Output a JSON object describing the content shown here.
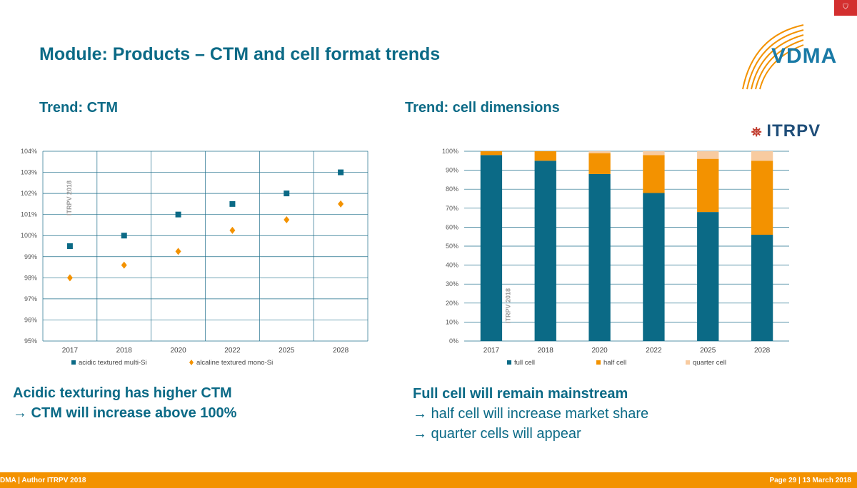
{
  "slide": {
    "title": "Module: Products – CTM and cell format trends",
    "left_subtitle": "Trend: CTM",
    "right_subtitle": "Trend: cell dimensions",
    "brand": "VDMA",
    "itrpv_logo": "ITRPV",
    "itrpv_mark": "⛯",
    "corner_icon": "bookmark-icon",
    "left_note": [
      "Acidic texturing has higher CTM",
      "→ CTM will increase above 100%"
    ],
    "right_note": [
      "Full cell will remain mainstream",
      "→ half cell will increase market share",
      "→ quarter cells will appear"
    ],
    "footer_left": "DMA | Author ITRPV 2018",
    "footer_right": "Page 29 | 13 March 2018",
    "colors": {
      "accent": "#0b6a86",
      "orange": "#f39200",
      "teal": "#0b6a86",
      "light": "#f8cba0"
    }
  },
  "chart_data": [
    {
      "type": "scatter",
      "title": "",
      "watermark": "ITRPV 2018",
      "categories": [
        "2017",
        "2018",
        "2020",
        "2022",
        "2025",
        "2028"
      ],
      "ylim": [
        95,
        104
      ],
      "yticks": [
        "95%",
        "96%",
        "97%",
        "98%",
        "99%",
        "100%",
        "101%",
        "102%",
        "103%",
        "104%"
      ],
      "series": [
        {
          "name": "acidic textured multi-Si",
          "color": "#0b6a86",
          "marker": "square",
          "values": [
            99.5,
            100.0,
            101.0,
            101.5,
            102.0,
            103.0
          ]
        },
        {
          "name": "alcaline textured mono-Si",
          "color": "#f39200",
          "marker": "diamond",
          "values": [
            98.0,
            98.6,
            99.25,
            100.25,
            100.75,
            101.5
          ]
        }
      ],
      "grid": true,
      "legend": "bottom"
    },
    {
      "type": "bar",
      "stacked": true,
      "title": "",
      "watermark": "ITRPV 2018",
      "categories": [
        "2017",
        "2018",
        "2020",
        "2022",
        "2025",
        "2028"
      ],
      "ylim": [
        0,
        100
      ],
      "yticks": [
        "0%",
        "10%",
        "20%",
        "30%",
        "40%",
        "50%",
        "60%",
        "70%",
        "80%",
        "90%",
        "100%"
      ],
      "series": [
        {
          "name": "full cell",
          "color": "#0b6a86",
          "values": [
            98,
            95,
            88,
            78,
            68,
            56
          ]
        },
        {
          "name": "half cell",
          "color": "#f39200",
          "values": [
            2,
            5,
            11,
            20,
            28,
            39
          ]
        },
        {
          "name": "quarter cell",
          "color": "#f8cba0",
          "values": [
            0,
            0,
            1,
            2,
            4,
            5
          ]
        }
      ],
      "grid": true,
      "legend": "bottom"
    }
  ]
}
